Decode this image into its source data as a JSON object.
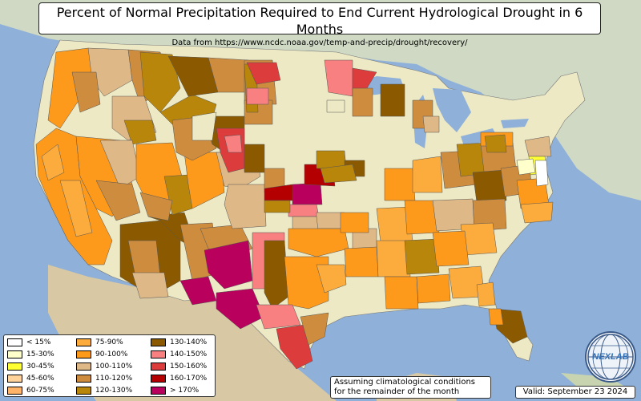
{
  "title": "Percent of Normal Precipitation Required to End Current Hydrological Drought in 6 Months",
  "subtitle": "Data from https://www.ncdc.noaa.gov/temp-and-precip/drought/recovery/",
  "legend": [
    {
      "label": "< 15%",
      "color": "#ffffff"
    },
    {
      "label": "15-30%",
      "color": "#ffffcc"
    },
    {
      "label": "30-45%",
      "color": "#ffff33"
    },
    {
      "label": "45-60%",
      "color": "#ffd399"
    },
    {
      "label": "60-75%",
      "color": "#ffb366"
    },
    {
      "label": "75-90%",
      "color": "#fcac3c"
    },
    {
      "label": "90-100%",
      "color": "#fe9a1b"
    },
    {
      "label": "100-110%",
      "color": "#deb887"
    },
    {
      "label": "110-120%",
      "color": "#cd8c3e"
    },
    {
      "label": "120-130%",
      "color": "#b8860b"
    },
    {
      "label": "130-140%",
      "color": "#8b5a00"
    },
    {
      "label": "140-150%",
      "color": "#f88080"
    },
    {
      "label": "150-160%",
      "color": "#dc3c3c"
    },
    {
      "label": "160-170%",
      "color": "#b40000"
    },
    {
      "label": "> 170%",
      "color": "#b8005c"
    }
  ],
  "note_line1": "Assuming climatological conditions",
  "note_line2": "for the remainder of the month",
  "valid": "Valid: September 23 2024",
  "logo_text": "NEXLAB"
}
